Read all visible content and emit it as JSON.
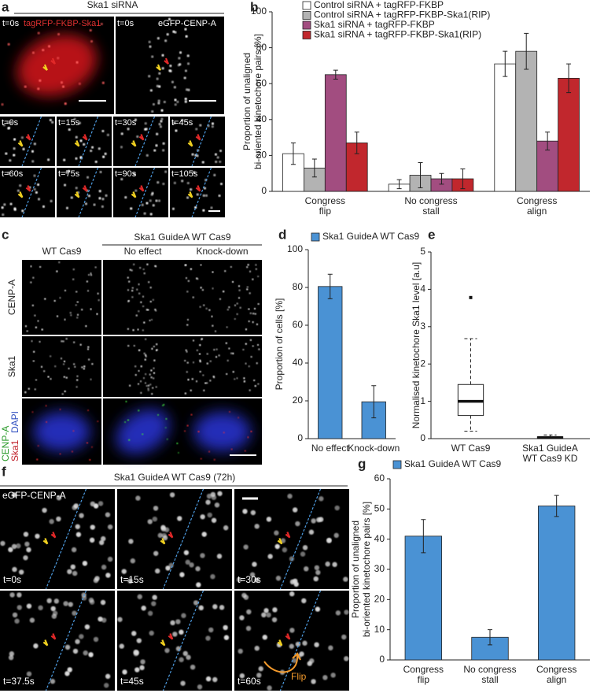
{
  "figure": {
    "a": {
      "label": "a",
      "title": "Ska1 siRNA",
      "channel_red": "tagRFP-FKBP-Ska1",
      "channel_green": "eGFP-CENP-A",
      "times": [
        "t=0s",
        "t=0s"
      ],
      "series_times": [
        "t=0s",
        "t=15s",
        "t=30s",
        "t=45s",
        "t=60s",
        "t=75s",
        "t=90s",
        "t=105s"
      ]
    },
    "c": {
      "label": "c",
      "group": "Ska1 GuideA WT Cas9",
      "columns": [
        "WT Cas9",
        "No effect",
        "Knock-down"
      ],
      "rows": [
        "CENP-A",
        "Ska1"
      ],
      "merge": [
        "CENP-A",
        "Ska1",
        "DAPI"
      ]
    },
    "f": {
      "label": "f",
      "title": "Ska1 GuideA WT Cas9 (72h)",
      "channel": "eGFP-CENP-A",
      "times": [
        "t=0s",
        "t=15s",
        "t=30s",
        "t=37.5s",
        "t=45s",
        "t=60s"
      ],
      "annotation": "Flip"
    }
  },
  "chart_data": [
    {
      "type": "bar",
      "panel_label": "b",
      "ylabel": [
        "Proportion of unaligned",
        "bi-oriented kinetochore pairs [%]"
      ],
      "categories": [
        [
          "Congress",
          "flip"
        ],
        [
          "No congress",
          "stall"
        ],
        [
          "Congress",
          "align"
        ]
      ],
      "series": [
        {
          "name": "Control siRNA + tagRFP-FKBP",
          "color": "#ffffff",
          "values": [
            21,
            4,
            71
          ],
          "errors": [
            6,
            2.5,
            7
          ]
        },
        {
          "name": "Control siRNA + tagRFP-FKBP-Ska1(RIP)",
          "color": "#b3b3b3",
          "values": [
            13,
            9,
            78
          ],
          "errors": [
            5,
            7,
            10
          ]
        },
        {
          "name": "Ska1 siRNA + tagRFP-FKBP",
          "color": "#a24d80",
          "values": [
            65,
            7,
            28
          ],
          "errors": [
            2.5,
            3,
            5
          ]
        },
        {
          "name": "Ska1 siRNA + tagRFP-FKBP-Ska1(RIP)",
          "color": "#c1272d",
          "values": [
            27,
            7,
            63
          ],
          "errors": [
            6,
            5.5,
            8
          ]
        }
      ],
      "ylim": [
        0,
        100
      ],
      "yticks": [
        0,
        20,
        40,
        60,
        80,
        100
      ]
    },
    {
      "type": "bar",
      "panel_label": "d",
      "ylabel": [
        "Proportion of cells [%]"
      ],
      "categories": [
        [
          "No effect"
        ],
        [
          "Knock-down"
        ]
      ],
      "series": [
        {
          "name": "Ska1 GuideA WT Cas9",
          "color": "#4a92d4",
          "values": [
            80.5,
            19.5
          ],
          "errors": [
            6.5,
            8.5
          ]
        }
      ],
      "ylim": [
        0,
        100
      ],
      "yticks": [
        0,
        20,
        40,
        60,
        80,
        100
      ]
    },
    {
      "type": "box",
      "panel_label": "e",
      "ylabel": [
        "Normalised kinetochore Ska1 level [a.u]"
      ],
      "categories": [
        [
          "WT Cas9"
        ],
        [
          "Ska1 GuideA",
          "WT Cas9 KD"
        ]
      ],
      "boxes": [
        {
          "whislo": 0.2,
          "q1": 0.62,
          "med": 1.0,
          "q3": 1.45,
          "whishi": 2.68,
          "fliers": [
            3.78
          ]
        },
        {
          "whislo": 0.0,
          "q1": 0.01,
          "med": 0.03,
          "q3": 0.05,
          "whishi": 0.1,
          "fliers": []
        }
      ],
      "ylim": [
        0,
        5
      ],
      "yticks": [
        0,
        1,
        2,
        3,
        4,
        5
      ]
    },
    {
      "type": "bar",
      "panel_label": "g",
      "ylabel": [
        "Proportion of unaligned",
        "bi-oriented kinetochore pairs [%]"
      ],
      "categories": [
        [
          "Congress",
          "flip"
        ],
        [
          "No congress",
          "stall"
        ],
        [
          "Congress",
          "align"
        ]
      ],
      "series": [
        {
          "name": "Ska1 GuideA WT Cas9",
          "color": "#4a92d4",
          "values": [
            41,
            7.5,
            51
          ],
          "errors": [
            5.5,
            2.5,
            3.5
          ]
        }
      ],
      "ylim": [
        0,
        60
      ],
      "yticks": [
        0,
        10,
        20,
        30,
        40,
        50,
        60
      ]
    }
  ]
}
